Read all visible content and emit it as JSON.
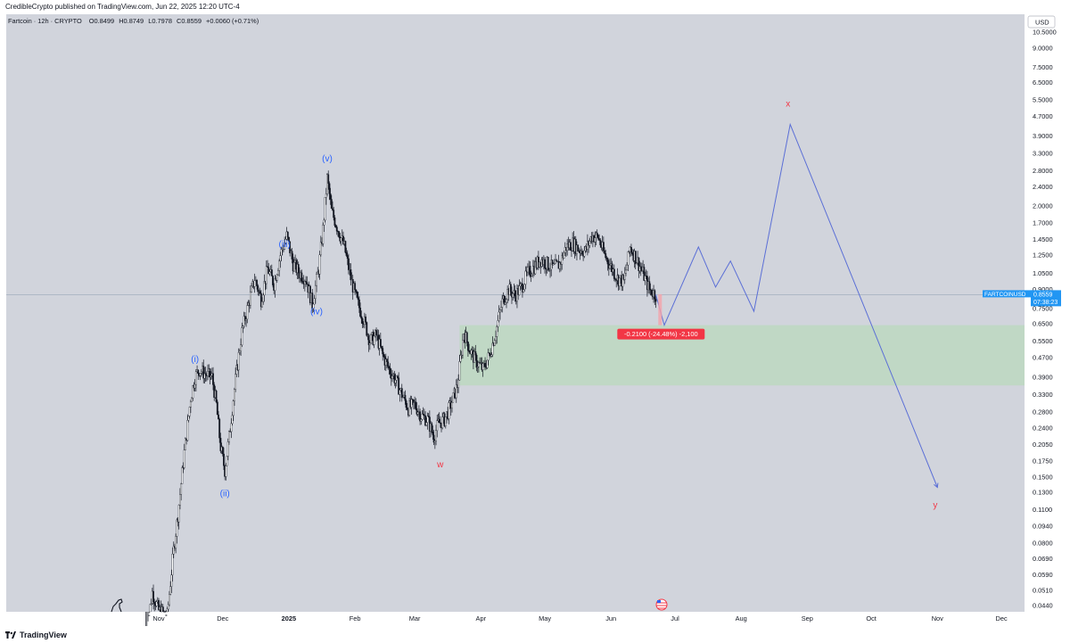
{
  "header": {
    "published_by": "CredibleCrypto published on TradingView.com, Jun 22, 2025 12:20 UTC-4"
  },
  "footer": {
    "brand": "TradingView"
  },
  "colors": {
    "background": "#d1d4dc",
    "candle": "#131722",
    "projection": "#5b6fd6",
    "zone": "#bfd8c3",
    "red": "#f23645",
    "label_blue": "#2962ff",
    "price_tag": "#2196f3"
  },
  "chart_data": {
    "type": "candlestick",
    "symbol_line": {
      "name": "Fartcoin · 12h · CRYPTO",
      "o_label": "O",
      "o": "0.8499",
      "h_label": "H",
      "h": "0.8749",
      "l_label": "L",
      "l": "0.7978",
      "c_label": "C",
      "c": "0.8559",
      "change": "+0.0060 (+0.71%)"
    },
    "currency": "USD",
    "y_scale": "log",
    "y_ticks": [
      "10.5000",
      "9.0000",
      "7.5000",
      "6.5000",
      "5.5000",
      "4.7000",
      "3.9000",
      "3.3000",
      "2.8000",
      "2.4000",
      "2.0000",
      "1.7000",
      "1.4500",
      "1.2500",
      "1.0500",
      "0.9000",
      "0.7500",
      "0.6500",
      "0.5500",
      "0.4700",
      "0.3900",
      "0.3300",
      "0.2800",
      "0.2400",
      "0.2050",
      "0.1750",
      "0.1500",
      "0.1300",
      "0.1100",
      "0.0940",
      "0.0800",
      "0.0690",
      "0.0590",
      "0.0510",
      "0.0440"
    ],
    "x_ticks": [
      "Nov",
      "Dec",
      "2025",
      "Feb",
      "Mar",
      "Apr",
      "May",
      "Jun",
      "Jul",
      "Aug",
      "Sep",
      "Oct",
      "Nov",
      "Dec"
    ],
    "last_price": {
      "symbol": "FARTCOINUSD",
      "price": "0.8559",
      "countdown": "07:38:23",
      "value": 0.8559
    },
    "measure_label": "-0.2100 (-24.48%) -2,100",
    "price_path": [
      [
        "2024-10-26",
        0.033
      ],
      [
        "2024-10-29",
        0.05
      ],
      [
        "2024-11-01",
        0.042
      ],
      [
        "2024-11-05",
        0.04
      ],
      [
        "2024-11-08",
        0.075
      ],
      [
        "2024-11-10",
        0.105
      ],
      [
        "2024-11-13",
        0.19
      ],
      [
        "2024-11-16",
        0.32
      ],
      [
        "2024-11-18",
        0.39
      ],
      [
        "2024-11-20",
        0.42
      ],
      [
        "2024-11-23",
        0.4
      ],
      [
        "2024-11-26",
        0.39
      ],
      [
        "2024-11-28",
        0.3
      ],
      [
        "2024-11-30",
        0.2
      ],
      [
        "2024-12-02",
        0.16
      ],
      [
        "2024-12-04",
        0.22
      ],
      [
        "2024-12-07",
        0.38
      ],
      [
        "2024-12-10",
        0.6
      ],
      [
        "2024-12-13",
        0.78
      ],
      [
        "2024-12-16",
        1.0
      ],
      [
        "2024-12-19",
        0.82
      ],
      [
        "2024-12-22",
        1.1
      ],
      [
        "2024-12-25",
        0.95
      ],
      [
        "2024-12-28",
        1.25
      ],
      [
        "2024-12-31",
        1.5
      ],
      [
        "2025-01-03",
        1.15
      ],
      [
        "2025-01-06",
        1.05
      ],
      [
        "2025-01-09",
        1.0
      ],
      [
        "2025-01-12",
        0.78
      ],
      [
        "2025-01-15",
        1.1
      ],
      [
        "2025-01-17",
        1.6
      ],
      [
        "2025-01-19",
        2.6
      ],
      [
        "2025-01-21",
        1.9
      ],
      [
        "2025-01-24",
        1.6
      ],
      [
        "2025-01-27",
        1.35
      ],
      [
        "2025-01-30",
        1.0
      ],
      [
        "2025-02-02",
        0.8
      ],
      [
        "2025-02-05",
        0.68
      ],
      [
        "2025-02-08",
        0.55
      ],
      [
        "2025-02-11",
        0.58
      ],
      [
        "2025-02-14",
        0.48
      ],
      [
        "2025-02-17",
        0.42
      ],
      [
        "2025-02-20",
        0.38
      ],
      [
        "2025-02-23",
        0.33
      ],
      [
        "2025-02-26",
        0.29
      ],
      [
        "2025-03-01",
        0.3
      ],
      [
        "2025-03-04",
        0.27
      ],
      [
        "2025-03-07",
        0.26
      ],
      [
        "2025-03-10",
        0.22
      ],
      [
        "2025-03-12",
        0.25
      ],
      [
        "2025-03-15",
        0.26
      ],
      [
        "2025-03-18",
        0.3
      ],
      [
        "2025-03-21",
        0.36
      ],
      [
        "2025-03-24",
        0.6
      ],
      [
        "2025-03-27",
        0.5
      ],
      [
        "2025-03-30",
        0.45
      ],
      [
        "2025-04-02",
        0.42
      ],
      [
        "2025-04-05",
        0.48
      ],
      [
        "2025-04-08",
        0.6
      ],
      [
        "2025-04-11",
        0.8
      ],
      [
        "2025-04-14",
        0.9
      ],
      [
        "2025-04-17",
        0.85
      ],
      [
        "2025-04-20",
        0.92
      ],
      [
        "2025-04-23",
        1.05
      ],
      [
        "2025-04-26",
        1.12
      ],
      [
        "2025-04-29",
        1.2
      ],
      [
        "2025-05-02",
        1.15
      ],
      [
        "2025-05-05",
        1.1
      ],
      [
        "2025-05-08",
        1.15
      ],
      [
        "2025-05-11",
        1.35
      ],
      [
        "2025-05-14",
        1.4
      ],
      [
        "2025-05-17",
        1.32
      ],
      [
        "2025-05-20",
        1.3
      ],
      [
        "2025-05-23",
        1.5
      ],
      [
        "2025-05-26",
        1.48
      ],
      [
        "2025-05-29",
        1.25
      ],
      [
        "2025-06-01",
        1.12
      ],
      [
        "2025-06-04",
        1.0
      ],
      [
        "2025-06-07",
        0.97
      ],
      [
        "2025-06-10",
        1.35
      ],
      [
        "2025-06-13",
        1.2
      ],
      [
        "2025-06-16",
        1.05
      ],
      [
        "2025-06-19",
        0.9
      ],
      [
        "2025-06-22",
        0.8559
      ]
    ],
    "projection_path": [
      [
        "2025-06-22",
        0.8559
      ],
      [
        "2025-06-26",
        0.64
      ],
      [
        "2025-07-12",
        1.35
      ],
      [
        "2025-07-20",
        0.92
      ],
      [
        "2025-07-27",
        1.18
      ],
      [
        "2025-08-07",
        0.73
      ],
      [
        "2025-08-24",
        4.35
      ],
      [
        "2025-11-01",
        0.136
      ]
    ],
    "support_zone": {
      "low": 0.36,
      "high": 0.64,
      "from": "2025-03-22"
    },
    "wave_labels": [
      {
        "text": "(i)",
        "date": "2024-11-18",
        "value": 0.45,
        "color": "blue"
      },
      {
        "text": "(ii)",
        "date": "2024-12-02",
        "value": 0.125,
        "color": "blue"
      },
      {
        "text": "(iii)",
        "date": "2024-12-30",
        "value": 1.35,
        "color": "blue"
      },
      {
        "text": "(iv)",
        "date": "2025-01-14",
        "value": 0.71,
        "color": "blue"
      },
      {
        "text": "(v)",
        "date": "2025-01-19",
        "value": 3.05,
        "color": "blue"
      },
      {
        "text": "w",
        "date": "2025-03-13",
        "value": 0.165,
        "color": "red"
      },
      {
        "text": "x",
        "date": "2025-08-23",
        "value": 5.15,
        "color": "red"
      },
      {
        "text": "y",
        "date": "2025-10-31",
        "value": 0.112,
        "color": "red"
      }
    ]
  }
}
